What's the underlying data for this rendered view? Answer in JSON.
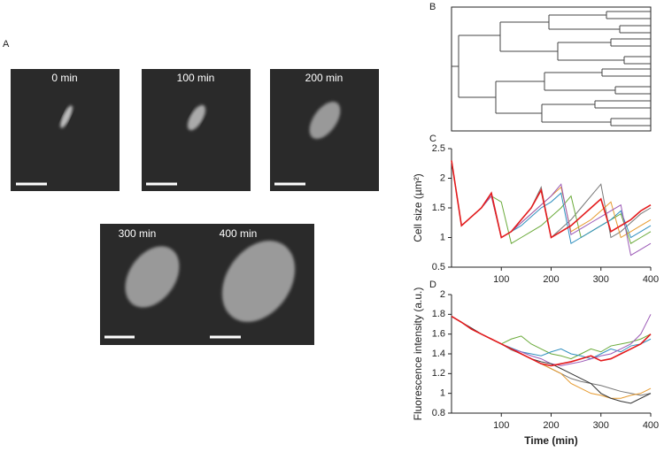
{
  "panel_a": {
    "label": "A",
    "images": [
      {
        "caption": "0 min"
      },
      {
        "caption": "100 min"
      },
      {
        "caption": "200 min"
      },
      {
        "caption": "300 min"
      },
      {
        "caption": "400 min"
      }
    ]
  },
  "panel_b": {
    "label": "B"
  },
  "chart_data": [
    {
      "type": "line",
      "panel_label": "C",
      "ylabel": "Cell size (µm²)",
      "x": [
        0,
        20,
        40,
        60,
        80,
        100,
        120,
        140,
        160,
        180,
        200,
        220,
        240,
        260,
        280,
        300,
        320,
        340,
        360,
        380,
        400
      ],
      "xlim": [
        0,
        400
      ],
      "xticks": [
        100,
        200,
        300,
        400
      ],
      "ylim": [
        0.5,
        2.5
      ],
      "yticks": [
        0.5,
        1,
        1.5,
        2,
        2.5
      ],
      "series": [
        {
          "color": "#777777",
          "values": [
            2.3,
            1.2,
            1.35,
            1.5,
            1.75,
            1.0,
            1.1,
            1.3,
            1.5,
            1.85,
            1.0,
            1.15,
            1.3,
            1.5,
            1.7,
            1.9,
            1.0,
            1.1,
            1.25,
            1.4,
            1.5
          ]
        },
        {
          "color": "#6aaa3a",
          "values": [
            2.3,
            1.2,
            1.35,
            1.5,
            1.7,
            1.6,
            0.9,
            1.0,
            1.1,
            1.2,
            1.35,
            1.5,
            1.7,
            1.0,
            1.1,
            1.2,
            1.3,
            1.4,
            0.9,
            1.0,
            1.1
          ]
        },
        {
          "color": "#2f8fbf",
          "values": [
            2.3,
            1.2,
            1.35,
            1.5,
            1.7,
            1.0,
            1.1,
            1.2,
            1.35,
            1.5,
            1.6,
            1.75,
            0.9,
            1.0,
            1.1,
            1.2,
            1.3,
            1.45,
            1.0,
            1.1,
            1.2
          ]
        },
        {
          "color": "#e69a2e",
          "values": [
            2.3,
            1.2,
            1.35,
            1.5,
            1.7,
            1.0,
            1.1,
            1.25,
            1.4,
            1.55,
            1.7,
            1.85,
            1.1,
            1.2,
            1.3,
            1.45,
            1.6,
            1.0,
            1.1,
            1.2,
            1.3
          ]
        },
        {
          "color": "#9b59b6",
          "values": [
            2.3,
            1.2,
            1.35,
            1.5,
            1.7,
            1.0,
            1.1,
            1.25,
            1.4,
            1.55,
            1.7,
            1.9,
            1.05,
            1.15,
            1.25,
            1.35,
            1.45,
            1.55,
            0.7,
            0.8,
            0.9
          ]
        },
        {
          "color": "#e31a1c",
          "values": [
            2.3,
            1.2,
            1.35,
            1.5,
            1.75,
            1.0,
            1.1,
            1.3,
            1.5,
            1.8,
            1.0,
            1.1,
            1.2,
            1.35,
            1.5,
            1.65,
            1.1,
            1.2,
            1.3,
            1.45,
            1.55
          ]
        }
      ]
    },
    {
      "type": "line",
      "panel_label": "D",
      "ylabel": "Fluorescence intensity (a.u.)",
      "xlabel": "Time (min)",
      "x": [
        0,
        20,
        40,
        60,
        80,
        100,
        120,
        140,
        160,
        180,
        200,
        220,
        240,
        260,
        280,
        300,
        320,
        340,
        360,
        380,
        400
      ],
      "xlim": [
        0,
        400
      ],
      "xticks": [
        100,
        200,
        300,
        400
      ],
      "ylim": [
        0.8,
        2
      ],
      "yticks": [
        0.8,
        1,
        1.2,
        1.4,
        1.6,
        1.8,
        2
      ],
      "series": [
        {
          "color": "#777777",
          "values": [
            1.78,
            1.72,
            1.66,
            1.6,
            1.55,
            1.5,
            1.44,
            1.4,
            1.35,
            1.3,
            1.25,
            1.2,
            1.15,
            1.12,
            1.1,
            1.08,
            1.05,
            1.02,
            1.0,
            0.98,
            1.0
          ]
        },
        {
          "color": "#6aaa3a",
          "values": [
            1.78,
            1.72,
            1.66,
            1.6,
            1.55,
            1.5,
            1.55,
            1.58,
            1.5,
            1.45,
            1.4,
            1.38,
            1.35,
            1.4,
            1.45,
            1.42,
            1.48,
            1.5,
            1.52,
            1.55,
            1.6
          ]
        },
        {
          "color": "#2f8fbf",
          "values": [
            1.78,
            1.72,
            1.66,
            1.6,
            1.55,
            1.5,
            1.46,
            1.42,
            1.4,
            1.38,
            1.42,
            1.45,
            1.4,
            1.38,
            1.35,
            1.4,
            1.45,
            1.42,
            1.48,
            1.5,
            1.55
          ]
        },
        {
          "color": "#e69a2e",
          "values": [
            1.78,
            1.72,
            1.66,
            1.6,
            1.55,
            1.5,
            1.45,
            1.4,
            1.35,
            1.3,
            1.25,
            1.2,
            1.1,
            1.05,
            1.0,
            0.98,
            0.95,
            0.95,
            0.98,
            1.0,
            1.05
          ]
        },
        {
          "color": "#9b59b6",
          "values": [
            1.78,
            1.72,
            1.66,
            1.6,
            1.55,
            1.5,
            1.45,
            1.42,
            1.38,
            1.35,
            1.3,
            1.28,
            1.3,
            1.32,
            1.35,
            1.38,
            1.4,
            1.45,
            1.5,
            1.6,
            1.8
          ]
        },
        {
          "color": "#333333",
          "values": [
            1.78,
            1.72,
            1.66,
            1.6,
            1.55,
            1.5,
            1.45,
            1.4,
            1.35,
            1.32,
            1.3,
            1.25,
            1.2,
            1.15,
            1.1,
            1.0,
            0.95,
            0.92,
            0.9,
            0.95,
            1.0
          ]
        },
        {
          "color": "#e31a1c",
          "values": [
            1.78,
            1.72,
            1.65,
            1.6,
            1.55,
            1.5,
            1.45,
            1.4,
            1.35,
            1.3,
            1.28,
            1.3,
            1.32,
            1.35,
            1.38,
            1.33,
            1.35,
            1.4,
            1.45,
            1.5,
            1.6
          ]
        }
      ]
    }
  ]
}
